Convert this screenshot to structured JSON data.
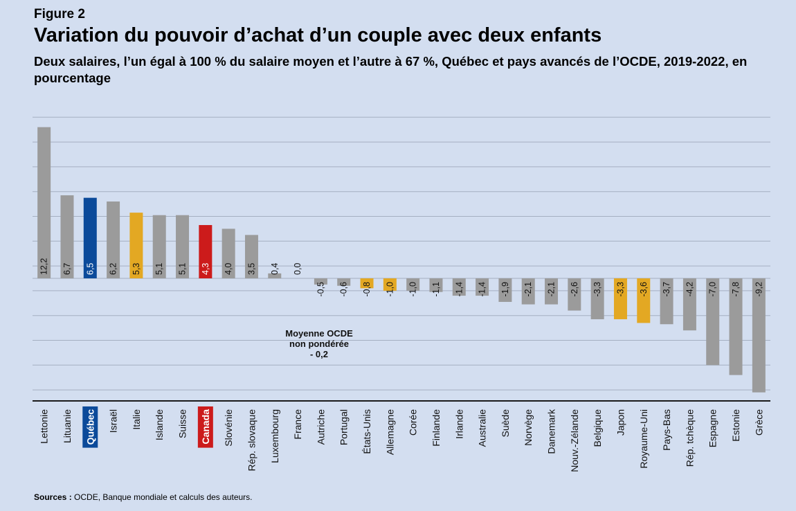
{
  "figure_label": "Figure 2",
  "title": "Variation du pouvoir d’achat d’un couple avec deux enfants",
  "subtitle": "Deux salaires, l’un égal à 100 % du salaire moyen et l’autre à 67 %, Québec et pays avancés de l’OCDE, 2019-2022, en pourcentage",
  "source": {
    "label": "Sources :",
    "text": " OCDE, Banque mondiale et calculs des auteurs."
  },
  "annotation": {
    "lines": [
      "Moyenne OCDE",
      "non pondérée",
      "- 0,2"
    ]
  },
  "colors": {
    "background": "#d3def0",
    "default": "#9b9b9b",
    "quebec": "#0b4a9a",
    "canada": "#cc1b1b",
    "highlight": "#e3a823",
    "gridline": "#a4afc1",
    "axis": "#1a1a1a"
  },
  "chart_data": {
    "type": "bar",
    "title": "Variation du pouvoir d’achat d’un couple avec deux enfants",
    "ylim": [
      -10,
      14
    ],
    "grid": true,
    "legend": "none",
    "categories": [
      "Lettonie",
      "Lituanie",
      "Québec",
      "Israël",
      "Italie",
      "Islande",
      "Suisse",
      "Canada",
      "Slovénie",
      "Rép. slovaque",
      "Luxembourg",
      "France",
      "Autriche",
      "Portugal",
      "États-Unis",
      "Allemagne",
      "Corée",
      "Finlande",
      "Irlande",
      "Australie",
      "Suède",
      "Norvège",
      "Danemark",
      "Nouv.-Zélande",
      "Belgique",
      "Japon",
      "Royaume-Uni",
      "Pays-Bas",
      "Rép. tchèque",
      "Espagne",
      "Estonie",
      "Grèce"
    ],
    "values": [
      12.2,
      6.7,
      6.5,
      6.2,
      5.3,
      5.1,
      5.1,
      4.3,
      4.0,
      3.5,
      0.4,
      0.0,
      -0.5,
      -0.6,
      -0.8,
      -1.0,
      -1.0,
      -1.1,
      -1.4,
      -1.4,
      -1.9,
      -2.1,
      -2.1,
      -2.6,
      -3.3,
      -3.3,
      -3.6,
      -3.7,
      -4.2,
      -7.0,
      -7.8,
      -9.2
    ],
    "labels": [
      "12,2",
      "6,7",
      "6,5",
      "6,2",
      "5,3",
      "5,1",
      "5,1",
      "4,3",
      "4,0",
      "3,5",
      "0,4",
      "0,0",
      "-0,5",
      "-0,6",
      "-0,8",
      "-1,0",
      "-1,0",
      "-1,1",
      "-1,4",
      "-1,4",
      "-1,9",
      "-2,1",
      "-2,1",
      "-2,6",
      "-3,3",
      "-3,3",
      "-3,6",
      "-3,7",
      "-4,2",
      "-7,0",
      "-7,8",
      "-9,2"
    ],
    "bar_color_keys": [
      "default",
      "default",
      "quebec",
      "default",
      "highlight",
      "default",
      "default",
      "canada",
      "default",
      "default",
      "default",
      "default",
      "default",
      "default",
      "highlight",
      "highlight",
      "default",
      "default",
      "default",
      "default",
      "default",
      "default",
      "default",
      "default",
      "default",
      "highlight",
      "highlight",
      "default",
      "default",
      "default",
      "default",
      "default"
    ],
    "highlighted_categories": [
      "Québec",
      "Canada"
    ]
  }
}
